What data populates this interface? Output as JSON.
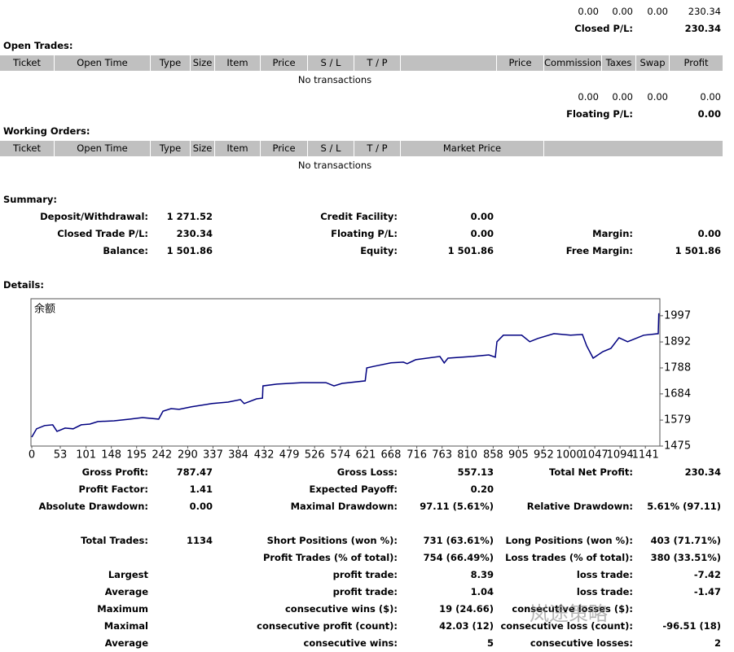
{
  "top_summary": {
    "totals": [
      "0.00",
      "0.00",
      "0.00",
      "230.34"
    ],
    "label": "Closed P/L:",
    "value": "230.34"
  },
  "open_trades": {
    "title": "Open Trades:",
    "headers": [
      "Ticket",
      "Open Time",
      "Type",
      "Size",
      "Item",
      "Price",
      "S / L",
      "T / P",
      "Price",
      "Commission",
      "Taxes",
      "Swap",
      "Profit"
    ],
    "empty": "No transactions",
    "totals": [
      "0.00",
      "0.00",
      "0.00",
      "0.00"
    ],
    "label": "Floating P/L:",
    "value": "0.00"
  },
  "working_orders": {
    "title": "Working Orders:",
    "headers": [
      "Ticket",
      "Open Time",
      "Type",
      "Size",
      "Item",
      "Price",
      "S / L",
      "T / P",
      "Market Price"
    ],
    "empty": "No transactions"
  },
  "summary": {
    "title": "Summary:",
    "rows": [
      [
        "Deposit/Withdrawal:",
        "1 271.52",
        "Credit Facility:",
        "0.00",
        null,
        null
      ],
      [
        "Closed Trade P/L:",
        "230.34",
        "Floating P/L:",
        "0.00",
        "Margin:",
        "0.00"
      ],
      [
        "Balance:",
        "1 501.86",
        "Equity:",
        "1 501.86",
        "Free Margin:",
        "1 501.86"
      ]
    ]
  },
  "details": {
    "title": "Details:",
    "chart": {
      "type": "line",
      "label": "余额",
      "color": "#000080",
      "x": [
        0,
        9,
        24,
        39,
        47,
        62,
        77,
        92,
        108,
        123,
        153,
        183,
        206,
        236,
        244,
        259,
        274,
        297,
        335,
        365,
        388,
        395,
        418,
        429,
        430,
        456,
        502,
        547,
        562,
        577,
        620,
        623,
        638,
        668,
        691,
        698,
        714,
        759,
        767,
        774,
        820,
        850,
        862,
        865,
        877,
        911,
        926,
        941,
        971,
        1002,
        1024,
        1032,
        1044,
        1062,
        1077,
        1092,
        1108,
        1138,
        1165,
        1166
      ],
      "values": [
        1511,
        1544,
        1557,
        1560,
        1534,
        1547,
        1544,
        1560,
        1563,
        1573,
        1576,
        1583,
        1589,
        1583,
        1615,
        1625,
        1622,
        1632,
        1645,
        1651,
        1661,
        1645,
        1664,
        1667,
        1716,
        1723,
        1729,
        1729,
        1716,
        1726,
        1736,
        1788,
        1795,
        1808,
        1811,
        1805,
        1821,
        1834,
        1808,
        1827,
        1834,
        1840,
        1831,
        1893,
        1919,
        1919,
        1893,
        1906,
        1925,
        1919,
        1922,
        1876,
        1827,
        1853,
        1866,
        1909,
        1893,
        1919,
        1925,
        2007
      ],
      "xlim": [
        0,
        1168
      ],
      "ylim": [
        1475,
        2065
      ],
      "xticks": [
        0,
        53,
        101,
        148,
        195,
        242,
        290,
        337,
        384,
        432,
        479,
        526,
        574,
        621,
        668,
        716,
        763,
        810,
        858,
        905,
        952,
        1000,
        1047,
        1094,
        1141
      ],
      "yticks": [
        1475,
        1579,
        1684,
        1788,
        1892,
        1997
      ]
    },
    "rows": [
      [
        "Gross Profit:",
        "787.47",
        "Gross Loss:",
        "557.13",
        "Total Net Profit:",
        "230.34"
      ],
      [
        "Profit Factor:",
        "1.41",
        "Expected Payoff:",
        "0.20",
        null,
        null
      ],
      [
        "Absolute Drawdown:",
        "0.00",
        "Maximal Drawdown:",
        "97.11 (5.61%)",
        "Relative Drawdown:",
        "5.61% (97.11)"
      ],
      [
        "Total Trades:",
        "1134",
        "Short Positions (won %):",
        "731 (63.61%)",
        "Long Positions (won %):",
        "403 (71.71%)"
      ],
      [
        null,
        null,
        "Profit Trades (% of total):",
        "754 (66.49%)",
        "Loss trades (% of total):",
        "380 (33.51%)"
      ],
      [
        "Largest",
        null,
        "profit trade:",
        "8.39",
        "loss trade:",
        "-7.42"
      ],
      [
        "Average",
        null,
        "profit trade:",
        "1.04",
        "loss trade:",
        "-1.47"
      ],
      [
        "Maximum",
        null,
        "consecutive wins ($):",
        "19 (24.66)",
        "consecutive losses ($):",
        null
      ],
      [
        "Maximal",
        null,
        "consecutive profit (count):",
        "42.03 (12)",
        "consecutive loss (count):",
        "-96.51 (18)"
      ],
      [
        "Average",
        null,
        "consecutive wins:",
        "5",
        "consecutive losses:",
        "2"
      ]
    ]
  },
  "watermark": "岚途策略"
}
